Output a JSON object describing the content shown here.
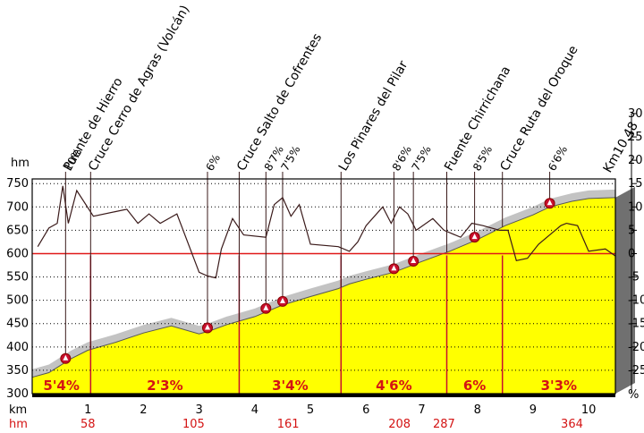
{
  "chart_data": {
    "type": "area",
    "title": "",
    "xlabel": "km",
    "ylabel": "hm",
    "xlim": [
      0,
      10.48
    ],
    "ylim": [
      300,
      760
    ],
    "y2lim": [
      -30,
      31
    ],
    "y2label": "%",
    "x_ticks": [
      1,
      2,
      3,
      4,
      5,
      6,
      7,
      8,
      9,
      10
    ],
    "y_ticks": [
      300,
      350,
      400,
      450,
      500,
      550,
      600,
      650,
      700,
      750
    ],
    "y2_ticks": [
      "30",
      "25",
      "20",
      "15",
      "10",
      "5",
      "0",
      "-5",
      "-10",
      "-15",
      "-20",
      "-25"
    ],
    "hm_marks": [
      {
        "x": 1,
        "label": "58"
      },
      {
        "x": 2.9,
        "label": "105"
      },
      {
        "x": 4.6,
        "label": "161"
      },
      {
        "x": 6.6,
        "label": "208"
      },
      {
        "x": 7.4,
        "label": "287"
      },
      {
        "x": 9.7,
        "label": "364"
      }
    ],
    "km_total_label": "Km10.48",
    "series": [
      {
        "kind": "elevation_profile",
        "x": [
          0,
          0.3,
          0.7,
          1.0,
          1.5,
          2.0,
          2.5,
          3.0,
          3.2,
          3.5,
          4.0,
          4.5,
          5.0,
          5.5,
          5.7,
          6.0,
          6.5,
          7.0,
          7.5,
          8.0,
          8.5,
          9.0,
          9.3,
          9.7,
          10.0,
          10.48
        ],
        "y": [
          335,
          345,
          375,
          393,
          410,
          430,
          445,
          428,
          435,
          448,
          465,
          490,
          508,
          525,
          535,
          545,
          560,
          583,
          605,
          630,
          660,
          683,
          700,
          712,
          718,
          720
        ]
      },
      {
        "kind": "gradient_line",
        "x": [
          0.1,
          0.3,
          0.45,
          0.55,
          0.65,
          0.8,
          1.1,
          1.5,
          1.7,
          1.9,
          2.1,
          2.3,
          2.6,
          3.0,
          3.15,
          3.3,
          3.4,
          3.6,
          3.8,
          4.2,
          4.35,
          4.5,
          4.65,
          4.8,
          5.0,
          5.5,
          5.7,
          5.85,
          6.0,
          6.3,
          6.45,
          6.6,
          6.75,
          6.9,
          7.2,
          7.4,
          7.7,
          7.9,
          8.1,
          8.4,
          8.55,
          8.7,
          8.9,
          9.1,
          9.3,
          9.5,
          9.6,
          9.8,
          10.0,
          10.3,
          10.48
        ],
        "y": [
          1.5,
          5.5,
          6.5,
          14.5,
          6.5,
          13.5,
          8.0,
          9.0,
          9.5,
          6.5,
          8.5,
          6.5,
          8.5,
          -4.0,
          -4.8,
          -5.2,
          1.0,
          7.5,
          4.0,
          3.5,
          10.5,
          12.0,
          8.0,
          10.5,
          2.0,
          1.5,
          0.5,
          2.5,
          6.0,
          10.0,
          6.5,
          10.0,
          8.5,
          5.0,
          7.5,
          5.0,
          3.5,
          6.5,
          6.0,
          5.0,
          5.0,
          -1.5,
          -1.0,
          2.0,
          4.0,
          6.0,
          6.5,
          6.0,
          0.5,
          1.0,
          -0.5
        ]
      }
    ],
    "waypoints": [
      {
        "x": 0.6,
        "label": "Puente de Hierro",
        "pct": "10%",
        "marker": true
      },
      {
        "x": 1.05,
        "label": "Cruce Cerro de Agras (Volcán)",
        "pct": "",
        "marker": false
      },
      {
        "x": 3.15,
        "label": "",
        "pct": "6%",
        "marker": true
      },
      {
        "x": 3.72,
        "label": "Cruce Salto de Cofrentes",
        "pct": "",
        "marker": false
      },
      {
        "x": 4.2,
        "label": "",
        "pct": "8'7%",
        "marker": true
      },
      {
        "x": 4.5,
        "label": "",
        "pct": "7'5%",
        "marker": true
      },
      {
        "x": 5.55,
        "label": "Los Pinares del Pilar",
        "pct": "",
        "marker": false
      },
      {
        "x": 6.5,
        "label": "",
        "pct": "8'6%",
        "marker": true
      },
      {
        "x": 6.85,
        "label": "",
        "pct": "7'5%",
        "marker": true
      },
      {
        "x": 7.45,
        "label": "Fuente Chirrichana",
        "pct": "",
        "marker": false
      },
      {
        "x": 7.95,
        "label": "",
        "pct": "8'5%",
        "marker": true
      },
      {
        "x": 8.45,
        "label": "Cruce Ruta del Oroque",
        "pct": "",
        "marker": false
      },
      {
        "x": 9.3,
        "label": "",
        "pct": "6'6%",
        "marker": true
      }
    ],
    "segments": [
      {
        "x0": 0,
        "x1": 1.05,
        "label": "5'4%"
      },
      {
        "x0": 1.05,
        "x1": 3.72,
        "label": "2'3%"
      },
      {
        "x0": 3.72,
        "x1": 5.55,
        "label": "3'4%"
      },
      {
        "x0": 5.55,
        "x1": 7.45,
        "label": "4'6%"
      },
      {
        "x0": 7.45,
        "x1": 8.45,
        "label": "6%"
      },
      {
        "x0": 8.45,
        "x1": 10.48,
        "label": "3'3%"
      }
    ],
    "colors": {
      "fill": "#ffff00",
      "grid": "#000000",
      "zero_line": "#e01818",
      "boundary": "#c8102e",
      "gradient_line": "#3a1a1a",
      "segment_text": "#d41414",
      "marker": "#c8102e"
    }
  }
}
